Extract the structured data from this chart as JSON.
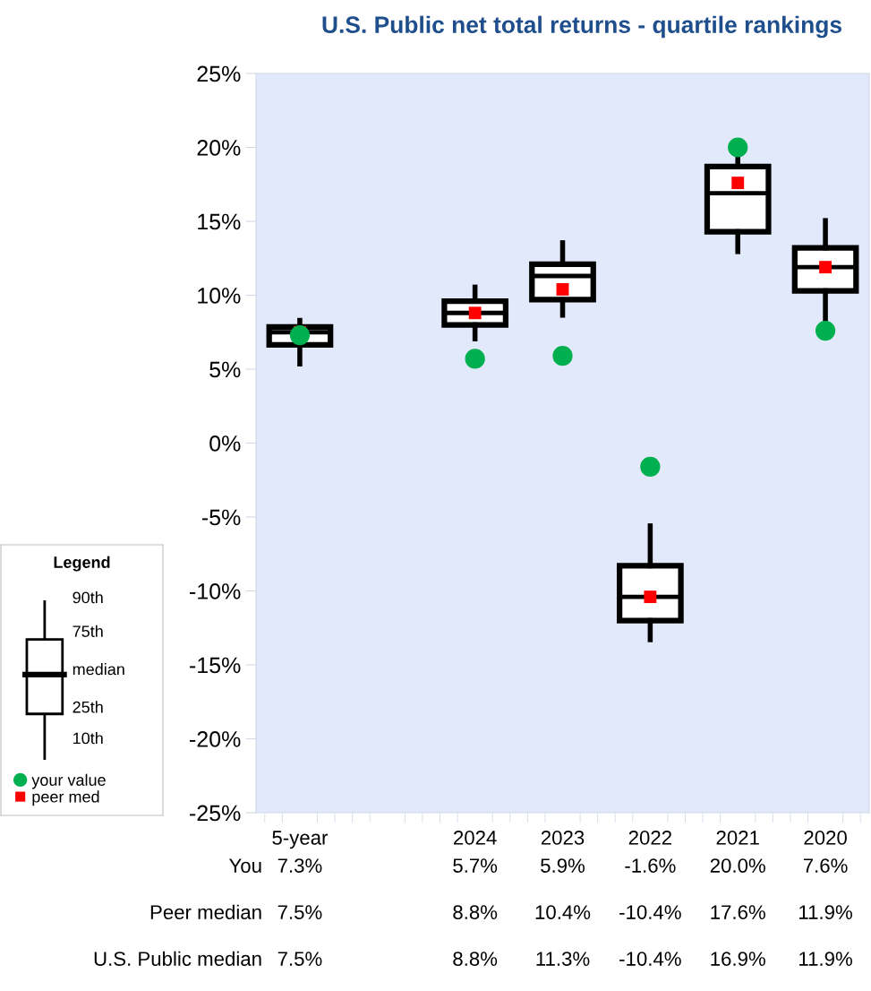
{
  "chart_data": {
    "type": "box",
    "title": "U.S. Public net total returns - quartile rankings",
    "categories": [
      "5-year",
      null,
      "2024",
      "2023",
      "2022",
      "2021",
      "2020"
    ],
    "series": [
      {
        "type": "scatter",
        "name": "your value",
        "color": "#00b050",
        "marker": "circle",
        "values": [
          7.3,
          null,
          5.7,
          5.9,
          -1.6,
          20.0,
          7.6
        ],
        "value_labels": [
          "7.3%",
          null,
          "5.7%",
          "5.9%",
          "-1.6%",
          "20.0%",
          "7.6%"
        ]
      },
      {
        "type": "scatter",
        "name": "peer med",
        "color": "#ff0000",
        "marker": "square",
        "values": [
          7.5,
          null,
          8.8,
          10.4,
          -10.4,
          17.6,
          11.9
        ],
        "value_labels": [
          "7.5%",
          null,
          "8.8%",
          "10.4%",
          "-10.4%",
          "17.6%",
          "11.9%"
        ]
      },
      {
        "color": "#000000",
        "boxes": [
          {
            "low": 5.35,
            "q1": 6.65,
            "median": 7.5,
            "q3": 7.85,
            "high": 8.3
          },
          null,
          {
            "low": 7.05,
            "q1": 8.0,
            "median": 8.8,
            "q3": 9.6,
            "high": 10.55
          },
          {
            "low": 8.65,
            "q1": 9.7,
            "median": 11.3,
            "q3": 12.1,
            "high": 13.55
          },
          {
            "low": -13.3,
            "q1": -12.0,
            "median": -10.4,
            "q3": -8.3,
            "high": -5.6
          },
          {
            "low": 12.95,
            "q1": 14.3,
            "median": 16.9,
            "q3": 18.7,
            "high": 19.5
          },
          {
            "low": 8.3,
            "q1": 10.3,
            "median": 11.9,
            "q3": 13.2,
            "high": 15.05
          }
        ],
        "value_labels": [
          "7.5%",
          null,
          "8.8%",
          "11.3%",
          "-10.4%",
          "16.9%",
          "11.9%"
        ]
      }
    ],
    "ylim": [
      -25,
      25
    ],
    "yticks": [
      {
        "value": 25,
        "label": "25%"
      },
      {
        "value": 20,
        "label": "20%"
      },
      {
        "value": 15,
        "label": "15%"
      },
      {
        "value": 10,
        "label": "10%"
      },
      {
        "value": 5,
        "label": "5%"
      },
      {
        "value": 0,
        "label": "0%"
      },
      {
        "value": -5,
        "label": "-5%"
      },
      {
        "value": -10,
        "label": "-10%"
      },
      {
        "value": -15,
        "label": "-15%"
      },
      {
        "value": -20,
        "label": "-20%"
      },
      {
        "value": -25,
        "label": "-25%"
      }
    ],
    "grid": false,
    "legend": "bottom left",
    "legend_title": "Legend",
    "annotations": [
      "You",
      "Peer median",
      "U.S. Public median",
      "90th",
      "75th",
      "median",
      "25th",
      "10th"
    ]
  }
}
